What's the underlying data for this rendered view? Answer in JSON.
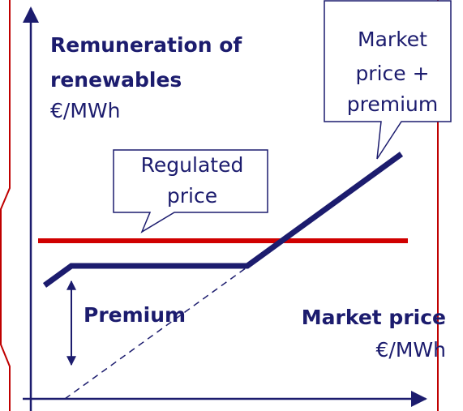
{
  "axis_label": {
    "title_line1": "Remuneration of",
    "title_line2": "renewables",
    "unit": "€/MWh"
  },
  "x_axis_label": {
    "title": "Market price",
    "unit": "€/MWh"
  },
  "callouts": [
    {
      "lines": [
        "Market",
        "price +",
        "premium"
      ]
    },
    {
      "lines": [
        "Regulated",
        "price"
      ]
    }
  ],
  "premium_label": "Premium"
}
